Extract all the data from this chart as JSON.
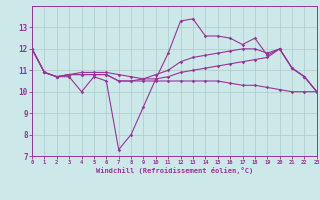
{
  "background_color": "#cce8e8",
  "grid_color": "#aacccc",
  "line_color": "#993399",
  "xlabel": "Windchill (Refroidissement éolien,°C)",
  "xlim": [
    0,
    23
  ],
  "ylim": [
    7,
    14
  ],
  "yticks": [
    7,
    8,
    9,
    10,
    11,
    12,
    13
  ],
  "xticks": [
    0,
    1,
    2,
    3,
    4,
    5,
    6,
    7,
    8,
    9,
    10,
    11,
    12,
    13,
    14,
    15,
    16,
    17,
    18,
    19,
    20,
    21,
    22,
    23
  ],
  "line1_x": [
    0,
    1,
    2,
    3,
    4,
    5,
    6,
    7,
    8,
    9,
    10,
    11,
    12,
    13,
    14,
    15,
    16,
    17,
    18,
    19,
    20,
    21,
    22,
    23
  ],
  "line1_y": [
    12.0,
    10.9,
    10.7,
    10.7,
    10.0,
    10.7,
    10.5,
    7.3,
    8.0,
    9.3,
    10.6,
    11.8,
    13.3,
    13.4,
    12.6,
    12.6,
    12.5,
    12.2,
    12.5,
    11.7,
    12.0,
    11.1,
    10.7,
    10.0
  ],
  "line2_x": [
    0,
    1,
    2,
    3,
    4,
    5,
    6,
    7,
    8,
    9,
    10,
    11,
    12,
    13,
    14,
    15,
    16,
    17,
    18,
    19,
    20,
    21,
    22,
    23
  ],
  "line2_y": [
    12.0,
    10.9,
    10.7,
    10.8,
    10.9,
    10.9,
    10.9,
    10.8,
    10.7,
    10.6,
    10.8,
    11.0,
    11.4,
    11.6,
    11.7,
    11.8,
    11.9,
    12.0,
    12.0,
    11.8,
    12.0,
    11.1,
    10.7,
    10.0
  ],
  "line3_x": [
    0,
    1,
    2,
    3,
    4,
    5,
    6,
    7,
    8,
    9,
    10,
    11,
    12,
    13,
    14,
    15,
    16,
    17,
    18,
    19,
    20,
    21,
    22,
    23
  ],
  "line3_y": [
    12.0,
    10.9,
    10.7,
    10.8,
    10.8,
    10.8,
    10.8,
    10.5,
    10.5,
    10.5,
    10.5,
    10.5,
    10.5,
    10.5,
    10.5,
    10.5,
    10.4,
    10.3,
    10.3,
    10.2,
    10.1,
    10.0,
    10.0,
    10.0
  ],
  "line4_x": [
    0,
    1,
    2,
    3,
    4,
    5,
    6,
    7,
    8,
    9,
    10,
    11,
    12,
    13,
    14,
    15,
    16,
    17,
    18,
    19,
    20,
    21,
    22,
    23
  ],
  "line4_y": [
    12.0,
    10.9,
    10.7,
    10.8,
    10.8,
    10.8,
    10.8,
    10.5,
    10.5,
    10.6,
    10.6,
    10.7,
    10.9,
    11.0,
    11.1,
    11.2,
    11.3,
    11.4,
    11.5,
    11.6,
    12.0,
    11.1,
    10.7,
    10.0
  ]
}
